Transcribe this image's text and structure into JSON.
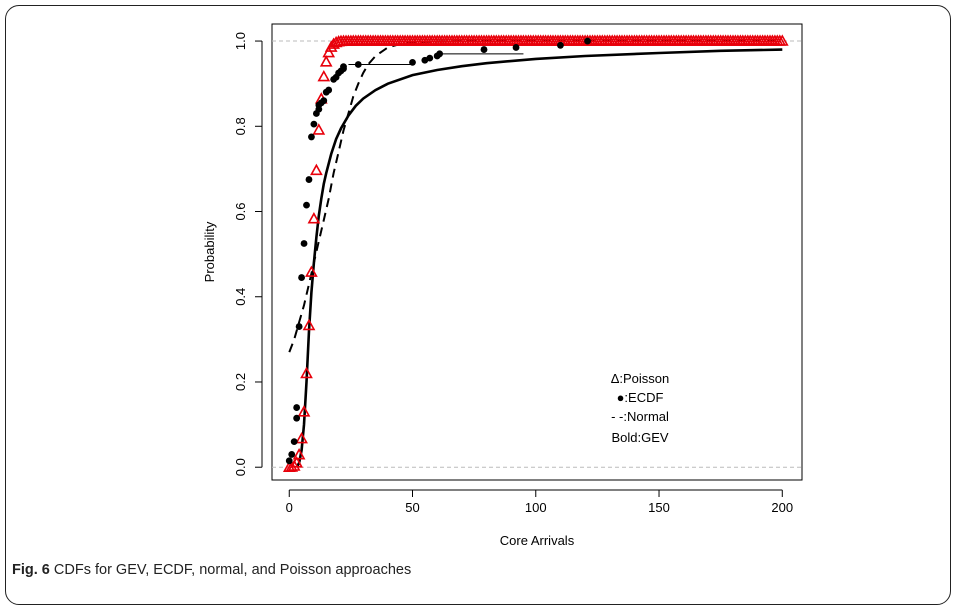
{
  "caption": {
    "label": "Fig. 6",
    "text": " CDFs for GEV, ECDF, normal, and Poisson approaches"
  },
  "chart_data": {
    "type": "line",
    "title": "",
    "xlabel": "Core Arrivals",
    "ylabel": "Probability",
    "xlim": [
      -7,
      208
    ],
    "ylim": [
      -0.03,
      1.04
    ],
    "xticks": [
      0,
      50,
      100,
      150,
      200
    ],
    "yticks": [
      0.0,
      0.2,
      0.4,
      0.6,
      0.8,
      1.0
    ],
    "xtick_labels": [
      "0",
      "50",
      "100",
      "150",
      "200"
    ],
    "ytick_labels": [
      "0.0",
      "0.2",
      "0.4",
      "0.6",
      "0.8",
      "1.0"
    ],
    "reference_lines": [
      0,
      1
    ],
    "legend": {
      "position": "bottom-right",
      "entries": [
        "Δ:Poisson",
        "●:ECDF",
        "- -:Normal",
        "Bold:GEV"
      ]
    },
    "series": [
      {
        "style": "triangles",
        "color": "#e8000b",
        "lambda": 10,
        "x_range": [
          0,
          200
        ]
      },
      {
        "style": "points",
        "color": "#000000",
        "x": [
          0,
          1,
          2,
          3,
          3,
          4,
          5,
          6,
          7,
          8,
          9,
          10,
          11,
          12,
          12,
          13,
          14,
          15,
          16,
          18,
          19,
          20,
          21,
          22,
          22,
          28,
          50,
          55,
          57,
          60,
          61,
          79,
          92,
          110,
          121
        ],
        "y": [
          0.015,
          0.03,
          0.06,
          0.115,
          0.14,
          0.33,
          0.445,
          0.525,
          0.615,
          0.675,
          0.775,
          0.805,
          0.83,
          0.84,
          0.85,
          0.855,
          0.86,
          0.88,
          0.885,
          0.91,
          0.915,
          0.925,
          0.93,
          0.935,
          0.94,
          0.945,
          0.95,
          0.955,
          0.96,
          0.965,
          0.97,
          0.98,
          0.985,
          0.99,
          1.0
        ],
        "steps": [
          [
            24,
            50,
            0.945
          ],
          [
            60,
            95,
            0.97
          ]
        ]
      },
      {
        "style": "dashed",
        "color": "#000000",
        "x": [
          0,
          2,
          4,
          6,
          8,
          10,
          12,
          14,
          16,
          18,
          20,
          22,
          24,
          26,
          28,
          30,
          32,
          35,
          40,
          45,
          50,
          60,
          70,
          80,
          100,
          200
        ],
        "y": [
          0.27,
          0.3,
          0.34,
          0.38,
          0.43,
          0.48,
          0.53,
          0.58,
          0.63,
          0.69,
          0.74,
          0.79,
          0.83,
          0.87,
          0.9,
          0.925,
          0.945,
          0.965,
          0.985,
          0.993,
          0.997,
          0.999,
          1.0,
          1.0,
          1.0,
          1.0
        ]
      },
      {
        "style": "bold",
        "color": "#000000",
        "x": [
          3,
          4,
          5,
          6,
          7,
          8,
          9,
          10,
          11,
          12,
          13,
          14,
          15,
          17,
          19,
          21,
          24,
          27,
          30,
          35,
          40,
          50,
          60,
          70,
          80,
          100,
          120,
          150,
          175,
          200
        ],
        "y": [
          0.0,
          0.01,
          0.04,
          0.1,
          0.2,
          0.32,
          0.41,
          0.48,
          0.54,
          0.59,
          0.63,
          0.665,
          0.69,
          0.735,
          0.77,
          0.795,
          0.825,
          0.848,
          0.865,
          0.885,
          0.9,
          0.92,
          0.932,
          0.941,
          0.948,
          0.958,
          0.965,
          0.972,
          0.977,
          0.98
        ]
      }
    ]
  }
}
